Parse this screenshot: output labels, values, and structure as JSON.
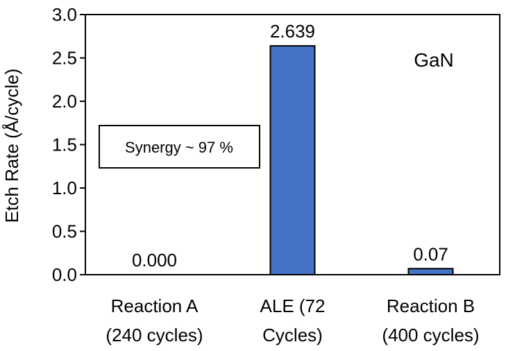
{
  "chart_data": {
    "type": "bar",
    "categories": [
      [
        "Reaction A",
        "(240 cycles)"
      ],
      [
        "ALE (72",
        "Cycles)"
      ],
      [
        "Reaction B",
        "(400 cycles)"
      ]
    ],
    "values": [
      0.0,
      2.639,
      0.07
    ],
    "data_labels": [
      "0.000",
      "2.639",
      "0.07"
    ],
    "ylabel": "Etch Rate (Å/cycle)",
    "ylim": [
      0,
      3.0
    ],
    "yticks": [
      "0.0",
      "0.5",
      "1.0",
      "1.5",
      "2.0",
      "2.5",
      "3.0"
    ],
    "grid": false,
    "bar_color": "#4472C4",
    "annotations": {
      "material": "GaN",
      "synergy": "Synergy ~ 97 %"
    }
  }
}
